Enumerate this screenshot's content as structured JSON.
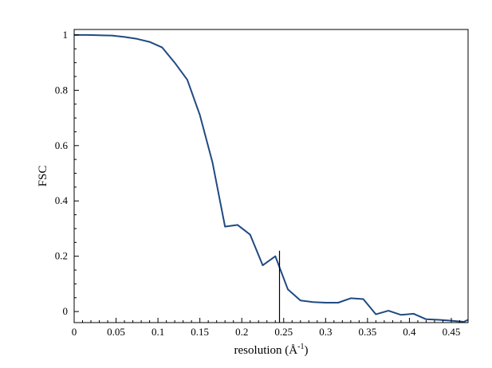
{
  "chart_data": {
    "type": "line",
    "title": "",
    "xlabel": "resolution (Å",
    "xlabel_sup": "-1",
    "xlabel_close": ")",
    "ylabel": "FSC",
    "xlim": [
      0,
      0.47
    ],
    "ylim": [
      -0.04,
      1.02
    ],
    "grid": false,
    "legend": "none",
    "x_ticks": [
      0,
      0.05,
      0.1,
      0.15,
      0.2,
      0.25,
      0.3,
      0.35,
      0.4,
      0.45
    ],
    "x_tick_labels": [
      "0",
      "0.05",
      "0.1",
      "0.15",
      "0.2",
      "0.25",
      "0.3",
      "0.35",
      "0.4",
      "0.45"
    ],
    "y_ticks": [
      0,
      0.2,
      0.4,
      0.6,
      0.8,
      1
    ],
    "y_tick_labels": [
      "0",
      "0.2",
      "0.4",
      "0.6",
      "0.8",
      "1"
    ],
    "series": [
      {
        "color": "#1f4a82",
        "x": [
          0,
          0.015,
          0.03,
          0.045,
          0.06,
          0.075,
          0.09,
          0.105,
          0.12,
          0.135,
          0.15,
          0.165,
          0.18,
          0.195,
          0.21,
          0.225,
          0.24,
          0.255,
          0.27,
          0.285,
          0.3,
          0.315,
          0.33,
          0.345,
          0.36,
          0.375,
          0.39,
          0.405,
          0.42,
          0.435,
          0.45,
          0.465,
          0.47
        ],
        "y": [
          1.0,
          1.0,
          0.999,
          0.998,
          0.993,
          0.986,
          0.975,
          0.955,
          0.9,
          0.838,
          0.71,
          0.54,
          0.307,
          0.313,
          0.278,
          0.167,
          0.2,
          0.08,
          0.04,
          0.034,
          0.032,
          0.032,
          0.048,
          0.045,
          -0.01,
          0.003,
          -0.012,
          -0.008,
          -0.028,
          -0.03,
          -0.033,
          -0.037,
          -0.03
        ]
      }
    ],
    "vline": {
      "x": 0.245,
      "y_top": 0.22,
      "color": "#000000"
    }
  }
}
